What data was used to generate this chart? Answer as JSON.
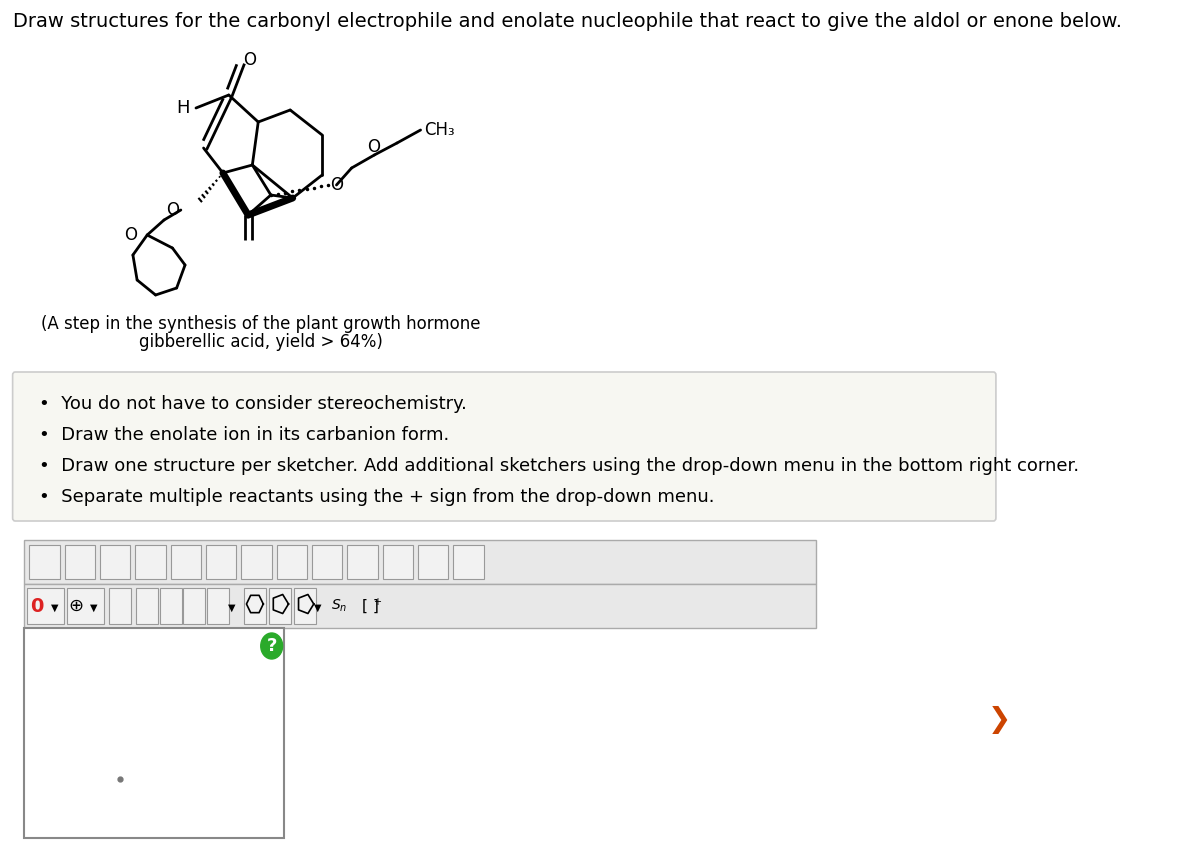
{
  "title": "Draw structures for the carbonyl electrophile and enolate nucleophile that react to give the aldol or enone below.",
  "caption_line1": "(A step in the synthesis of the plant growth hormone",
  "caption_line2": "gibberellic acid, yield > 64%)",
  "bullet_points": [
    "You do not have to consider stereochemistry.",
    "Draw the enolate ion in its carbanion form.",
    "Draw one structure per sketcher. Add additional sketchers using the drop-down menu in the bottom right corner.",
    "Separate multiple reactants using the + sign from the drop-down menu."
  ],
  "bg_color": "#ffffff",
  "box_bg": "#f7f7f2",
  "box_border": "#cccccc",
  "sketcher_bg": "#ffffff",
  "sketcher_border": "#888888",
  "toolbar_bg": "#e8e8e8",
  "toolbar_border": "#aaaaaa",
  "text_color": "#000000",
  "title_fontsize": 14,
  "caption_fontsize": 12,
  "bullet_fontsize": 13
}
